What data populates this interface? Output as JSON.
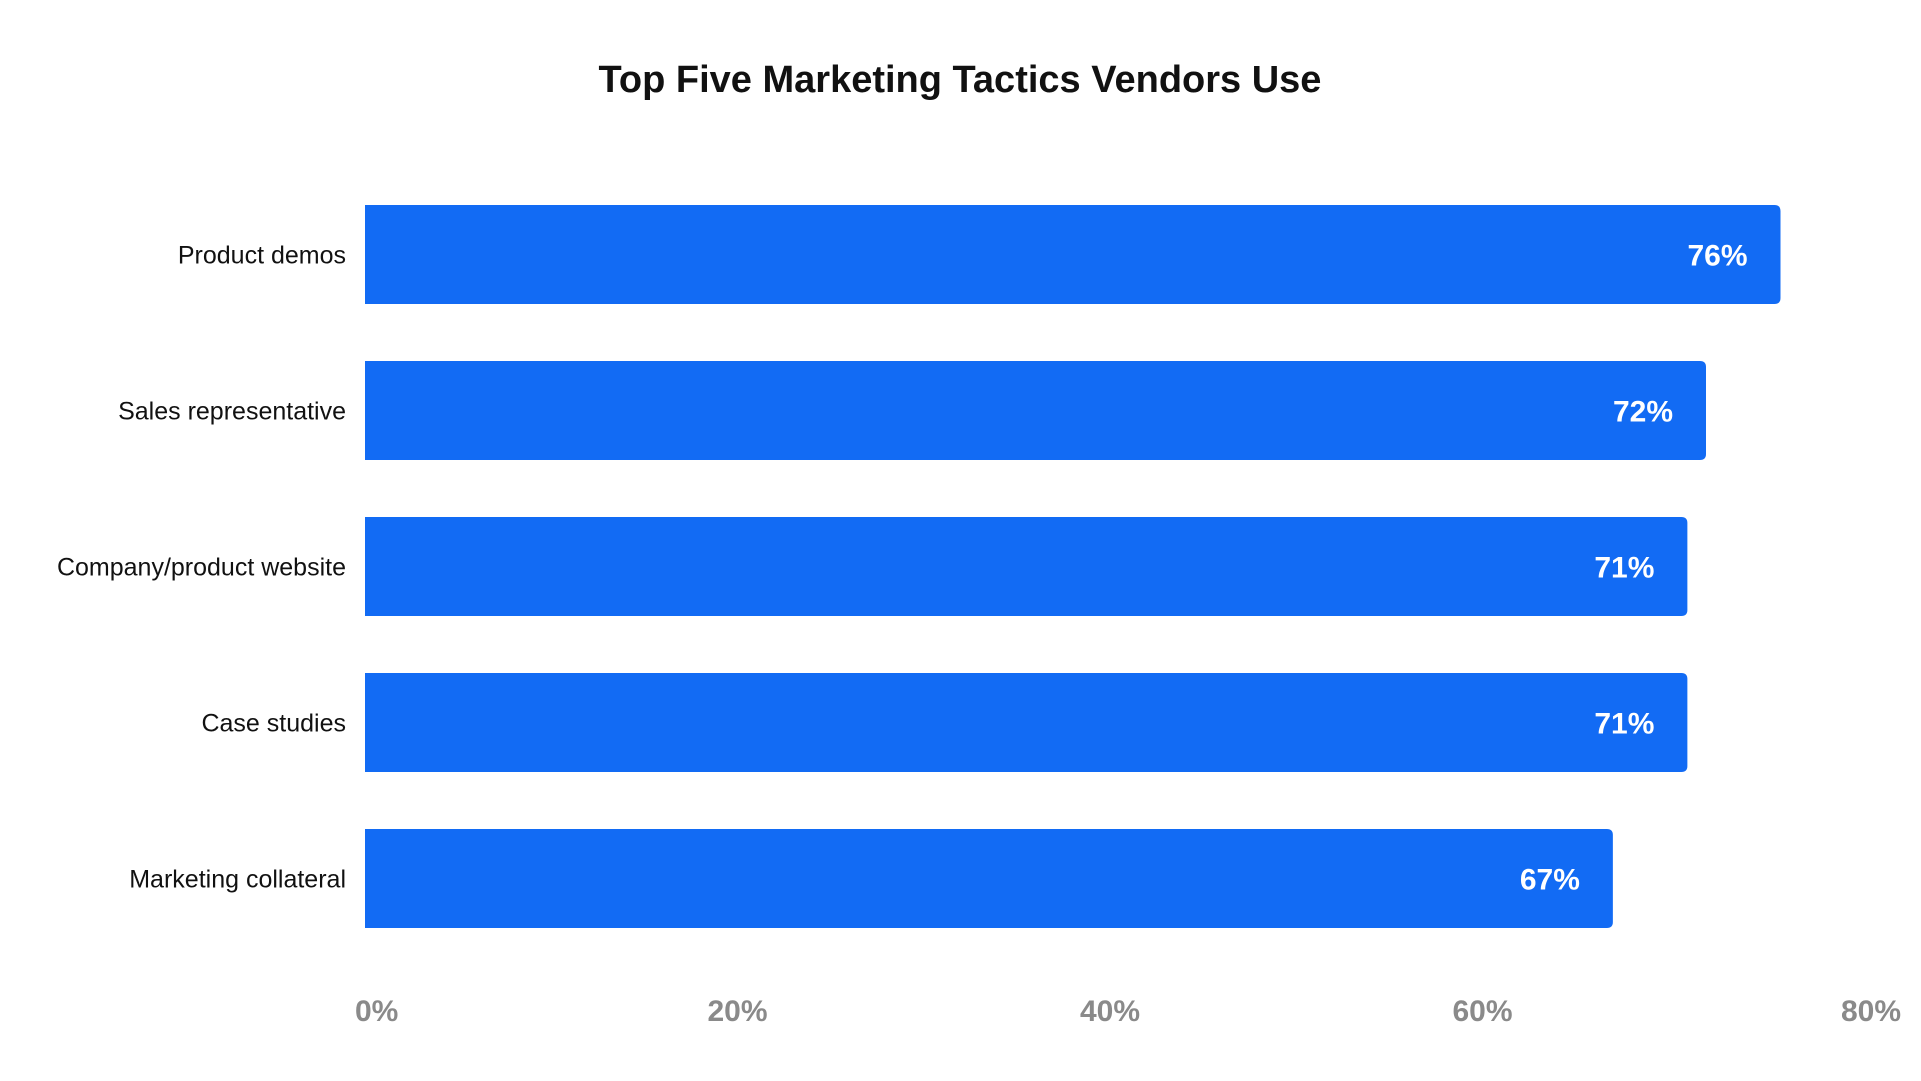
{
  "chart_data": {
    "type": "bar",
    "orientation": "horizontal",
    "title": "Top Five Marketing Tactics Vendors Use",
    "categories": [
      "Product demos",
      "Sales representative",
      "Company/product website",
      "Case studies",
      "Marketing collateral"
    ],
    "values": [
      76,
      72,
      71,
      71,
      67
    ],
    "value_labels": [
      "76%",
      "72%",
      "71%",
      "71%",
      "67%"
    ],
    "xlim": [
      0,
      80
    ],
    "x_ticks": [
      0,
      20,
      40,
      60,
      80
    ],
    "x_tick_labels": [
      "0%",
      "20%",
      "40%",
      "60%",
      "80%"
    ],
    "grid": false,
    "legend": "none",
    "colors": {
      "bar": "#126BF4",
      "value_label": "#FFFFFF",
      "tick_label": "#8A8A8A",
      "title": "#111111",
      "category_label": "#111111"
    }
  }
}
